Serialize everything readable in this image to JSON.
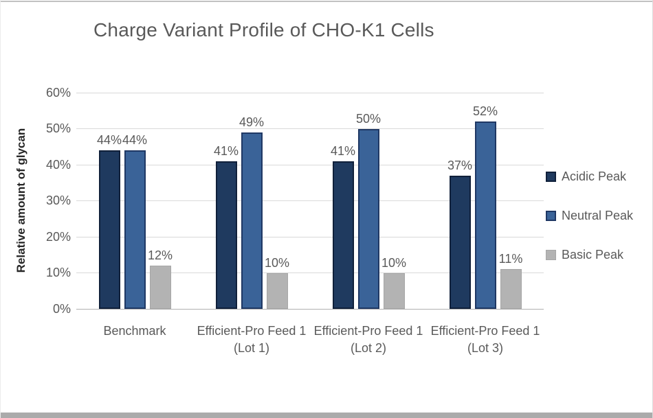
{
  "page": {
    "background": "#ffffff",
    "top_border_color": "#c2c2c2",
    "bottom_bar_color": "#ababab"
  },
  "chart_data": {
    "type": "bar",
    "title": "Charge Variant Profile of CHO-K1 Cells",
    "ylabel": "Relative amount of glycan",
    "xlabel": "",
    "categories": [
      "Benchmark",
      "Efficient-Pro Feed 1 (Lot 1)",
      "Efficient-Pro Feed 1 (Lot 2)",
      "Efficient-Pro Feed 1 (Lot 3)"
    ],
    "series": [
      {
        "name": "Acidic Peak",
        "values": [
          44,
          41,
          41,
          37
        ],
        "labels": [
          "44%",
          "41%",
          "41%",
          "37%"
        ],
        "fill": "#1f3a5f",
        "border": "#10203a"
      },
      {
        "name": "Neutral Peak",
        "values": [
          44,
          49,
          50,
          52
        ],
        "labels": [
          "44%",
          "49%",
          "50%",
          "52%"
        ],
        "fill": "#3a6398",
        "border": "#1f3864"
      },
      {
        "name": "Basic Peak",
        "values": [
          12,
          10,
          10,
          11
        ],
        "labels": [
          "12%",
          "10%",
          "10%",
          "11%"
        ],
        "fill": "#b3b3b3",
        "border": "#a6a6a6"
      }
    ],
    "ylim": [
      0,
      60
    ],
    "yticks": [
      0,
      10,
      20,
      30,
      40,
      50,
      60
    ],
    "ytick_labels": [
      "0%",
      "10%",
      "20%",
      "30%",
      "40%",
      "50%",
      "60%"
    ],
    "grid": true,
    "data_labels": true,
    "legend_position": "right",
    "colors": {
      "gridline": "#d9d9d9",
      "axis": "#b0b0b0",
      "tick_text": "#595959",
      "title_text": "#595959",
      "axis_title_text": "#262626"
    }
  }
}
